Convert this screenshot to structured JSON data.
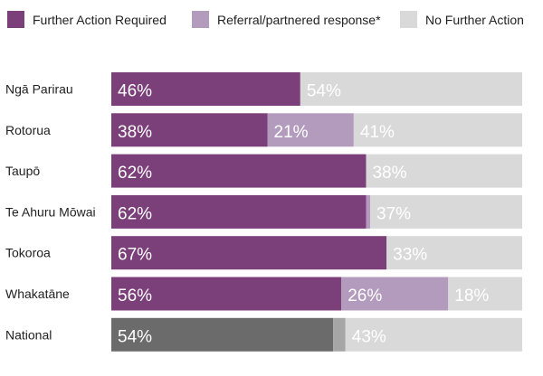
{
  "chart_data": {
    "type": "bar",
    "orientation": "horizontal",
    "stacked": true,
    "xlim": [
      0,
      100
    ],
    "grid": false,
    "legend_position": "top",
    "categories": [
      "Ngā Parirau",
      "Rotorua",
      "Taupō",
      "Te Ahuru Mōwai",
      "Tokoroa",
      "Whakatāne",
      "National"
    ],
    "series": [
      {
        "name": "Further Action Required",
        "color": "#7b3f7a",
        "values": [
          46,
          38,
          62,
          62,
          67,
          56,
          54
        ],
        "labels": [
          "46%",
          "38%",
          "62%",
          "62%",
          "67%",
          "56%",
          "54%"
        ],
        "point_colors": [
          null,
          null,
          null,
          null,
          null,
          null,
          "#6b6b6b"
        ]
      },
      {
        "name": "Referral/partnered response*",
        "color": "#b39bbd",
        "values": [
          0,
          21,
          0,
          1,
          0,
          26,
          3
        ],
        "labels": [
          "",
          "21%",
          "",
          "",
          "",
          "26%",
          ""
        ],
        "point_colors": [
          null,
          null,
          null,
          null,
          null,
          null,
          "#a6a6a6"
        ]
      },
      {
        "name": "No Further Action",
        "color": "#d9d9d9",
        "values": [
          54,
          41,
          38,
          37,
          33,
          18,
          43
        ],
        "labels": [
          "54%",
          "41%",
          "38%",
          "37%",
          "33%",
          "18%",
          "43%"
        ],
        "point_colors": [
          null,
          null,
          null,
          null,
          null,
          null,
          null
        ]
      }
    ]
  }
}
